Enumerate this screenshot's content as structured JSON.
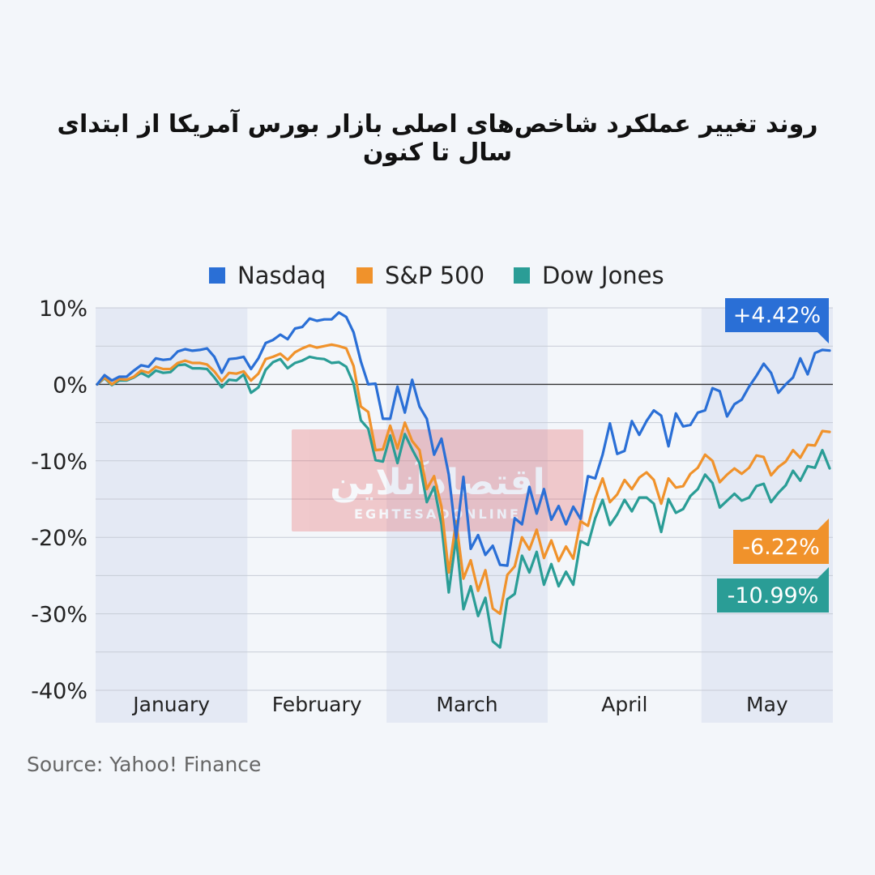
{
  "title": "روند تغییر عملکرد شاخص‌های اصلی بازار بورس آمریکا از ابتدای سال تا کنون",
  "source": "Source: Yahoo! Finance",
  "watermark": {
    "main": "اقتصادآنلاین",
    "sub": "EGHTESADONLINE",
    "color": "#e64a4a"
  },
  "chart_data": {
    "type": "line",
    "title": "روند تغییر عملکرد شاخص‌های اصلی بازار بورس آمریکا از ابتدای سال تا کنون",
    "ylim": [
      -40,
      10
    ],
    "y_ticks": [
      10,
      0,
      -10,
      -20,
      -30,
      -40
    ],
    "y_tick_labels": [
      "10%",
      "0%",
      "-10%",
      "-20%",
      "-30%",
      "-40%"
    ],
    "months": [
      {
        "label": "January",
        "start": 0,
        "end": 21,
        "shaded": true
      },
      {
        "label": "February",
        "start": 21,
        "end": 40,
        "shaded": false
      },
      {
        "label": "March",
        "start": 40,
        "end": 62,
        "shaded": true
      },
      {
        "label": "April",
        "start": 62,
        "end": 83,
        "shaded": false
      },
      {
        "label": "May",
        "start": 83,
        "end": 101,
        "shaded": true
      }
    ],
    "x_count": 101,
    "legend_position": "top",
    "grid": true,
    "series": [
      {
        "name": "Nasdaq",
        "color": "#2a6fd6",
        "end_label": "+4.42%",
        "values": [
          0,
          1.2,
          0.5,
          1.0,
          1.0,
          1.8,
          2.5,
          2.3,
          3.4,
          3.2,
          3.3,
          4.3,
          4.6,
          4.4,
          4.5,
          4.7,
          3.6,
          1.5,
          3.3,
          3.4,
          3.6,
          2.0,
          3.4,
          5.4,
          5.8,
          6.5,
          5.9,
          7.3,
          7.5,
          8.6,
          8.3,
          8.5,
          8.5,
          9.4,
          8.8,
          6.8,
          3.0,
          0.0,
          0.1,
          -4.5,
          -4.5,
          -0.3,
          -3.7,
          0.6,
          -2.9,
          -4.5,
          -9.2,
          -7.1,
          -11.8,
          -20.1,
          -12.1,
          -21.5,
          -19.7,
          -22.3,
          -21.1,
          -23.6,
          -23.7,
          -17.5,
          -18.3,
          -13.4,
          -16.9,
          -13.7,
          -17.7,
          -15.9,
          -18.3,
          -16.0,
          -17.6,
          -12.0,
          -12.3,
          -9.2,
          -5.1,
          -9.1,
          -8.7,
          -4.8,
          -6.6,
          -4.8,
          -3.4,
          -4.1,
          -8.1,
          -3.8,
          -5.5,
          -5.3,
          -3.7,
          -3.4,
          -0.5,
          -0.9,
          -4.2,
          -2.6,
          -2.0,
          -0.3,
          1.1,
          2.7,
          1.5,
          -1.1,
          0.0,
          0.9,
          3.4,
          1.3,
          4.1,
          4.5,
          4.42
        ]
      },
      {
        "name": "S&P 500",
        "color": "#f0922b",
        "end_label": "-6.22%",
        "values": [
          0,
          0.9,
          0.0,
          0.7,
          0.6,
          1.0,
          1.8,
          1.5,
          2.3,
          2.0,
          2.0,
          2.8,
          3.1,
          2.8,
          2.8,
          2.6,
          1.7,
          0.4,
          1.5,
          1.4,
          1.7,
          0.5,
          1.4,
          3.3,
          3.6,
          4.0,
          3.2,
          4.2,
          4.7,
          5.1,
          4.8,
          5.0,
          5.2,
          5.0,
          4.7,
          2.4,
          -2.9,
          -3.6,
          -8.6,
          -8.5,
          -5.4,
          -8.4,
          -5.0,
          -7.4,
          -8.6,
          -13.7,
          -12.0,
          -16.0,
          -24.6,
          -17.9,
          -25.4,
          -23.0,
          -27.0,
          -24.3,
          -29.3,
          -30.0,
          -24.9,
          -23.8,
          -20.0,
          -21.6,
          -19.0,
          -22.7,
          -20.4,
          -23.1,
          -21.2,
          -22.8,
          -17.9,
          -18.5,
          -14.9,
          -12.3,
          -15.4,
          -14.4,
          -12.5,
          -13.7,
          -12.2,
          -11.5,
          -12.5,
          -15.6,
          -12.3,
          -13.5,
          -13.3,
          -11.7,
          -10.9,
          -9.2,
          -10.0,
          -12.8,
          -11.8,
          -11.0,
          -11.7,
          -10.9,
          -9.3,
          -9.5,
          -11.9,
          -10.8,
          -10.1,
          -8.6,
          -9.6,
          -7.9,
          -8.0,
          -6.1,
          -6.22
        ]
      },
      {
        "name": "Dow Jones",
        "color": "#2a9d96",
        "end_label": "-10.99%",
        "values": [
          0,
          0.8,
          -0.1,
          0.5,
          0.5,
          0.9,
          1.5,
          1.0,
          1.8,
          1.5,
          1.6,
          2.5,
          2.6,
          2.1,
          2.1,
          2.0,
          0.9,
          -0.4,
          0.6,
          0.5,
          1.3,
          -1.1,
          -0.4,
          1.9,
          2.9,
          3.3,
          2.1,
          2.8,
          3.1,
          3.6,
          3.4,
          3.3,
          2.8,
          2.9,
          2.3,
          0.1,
          -4.7,
          -5.8,
          -9.9,
          -10.1,
          -6.7,
          -10.3,
          -6.5,
          -8.5,
          -10.3,
          -15.4,
          -13.4,
          -18.3,
          -27.2,
          -20.0,
          -29.4,
          -26.4,
          -30.3,
          -27.9,
          -33.6,
          -34.4,
          -28.1,
          -27.4,
          -22.4,
          -24.6,
          -21.9,
          -26.2,
          -23.5,
          -26.4,
          -24.5,
          -26.2,
          -20.5,
          -21.0,
          -17.5,
          -15.1,
          -18.4,
          -17.0,
          -15.1,
          -16.6,
          -14.8,
          -14.8,
          -15.6,
          -19.3,
          -15.0,
          -16.8,
          -16.3,
          -14.6,
          -13.7,
          -11.8,
          -12.9,
          -16.1,
          -15.2,
          -14.3,
          -15.2,
          -14.8,
          -13.3,
          -13.0,
          -15.4,
          -14.2,
          -13.2,
          -11.3,
          -12.6,
          -10.7,
          -10.9,
          -8.6,
          -10.99
        ]
      }
    ]
  }
}
